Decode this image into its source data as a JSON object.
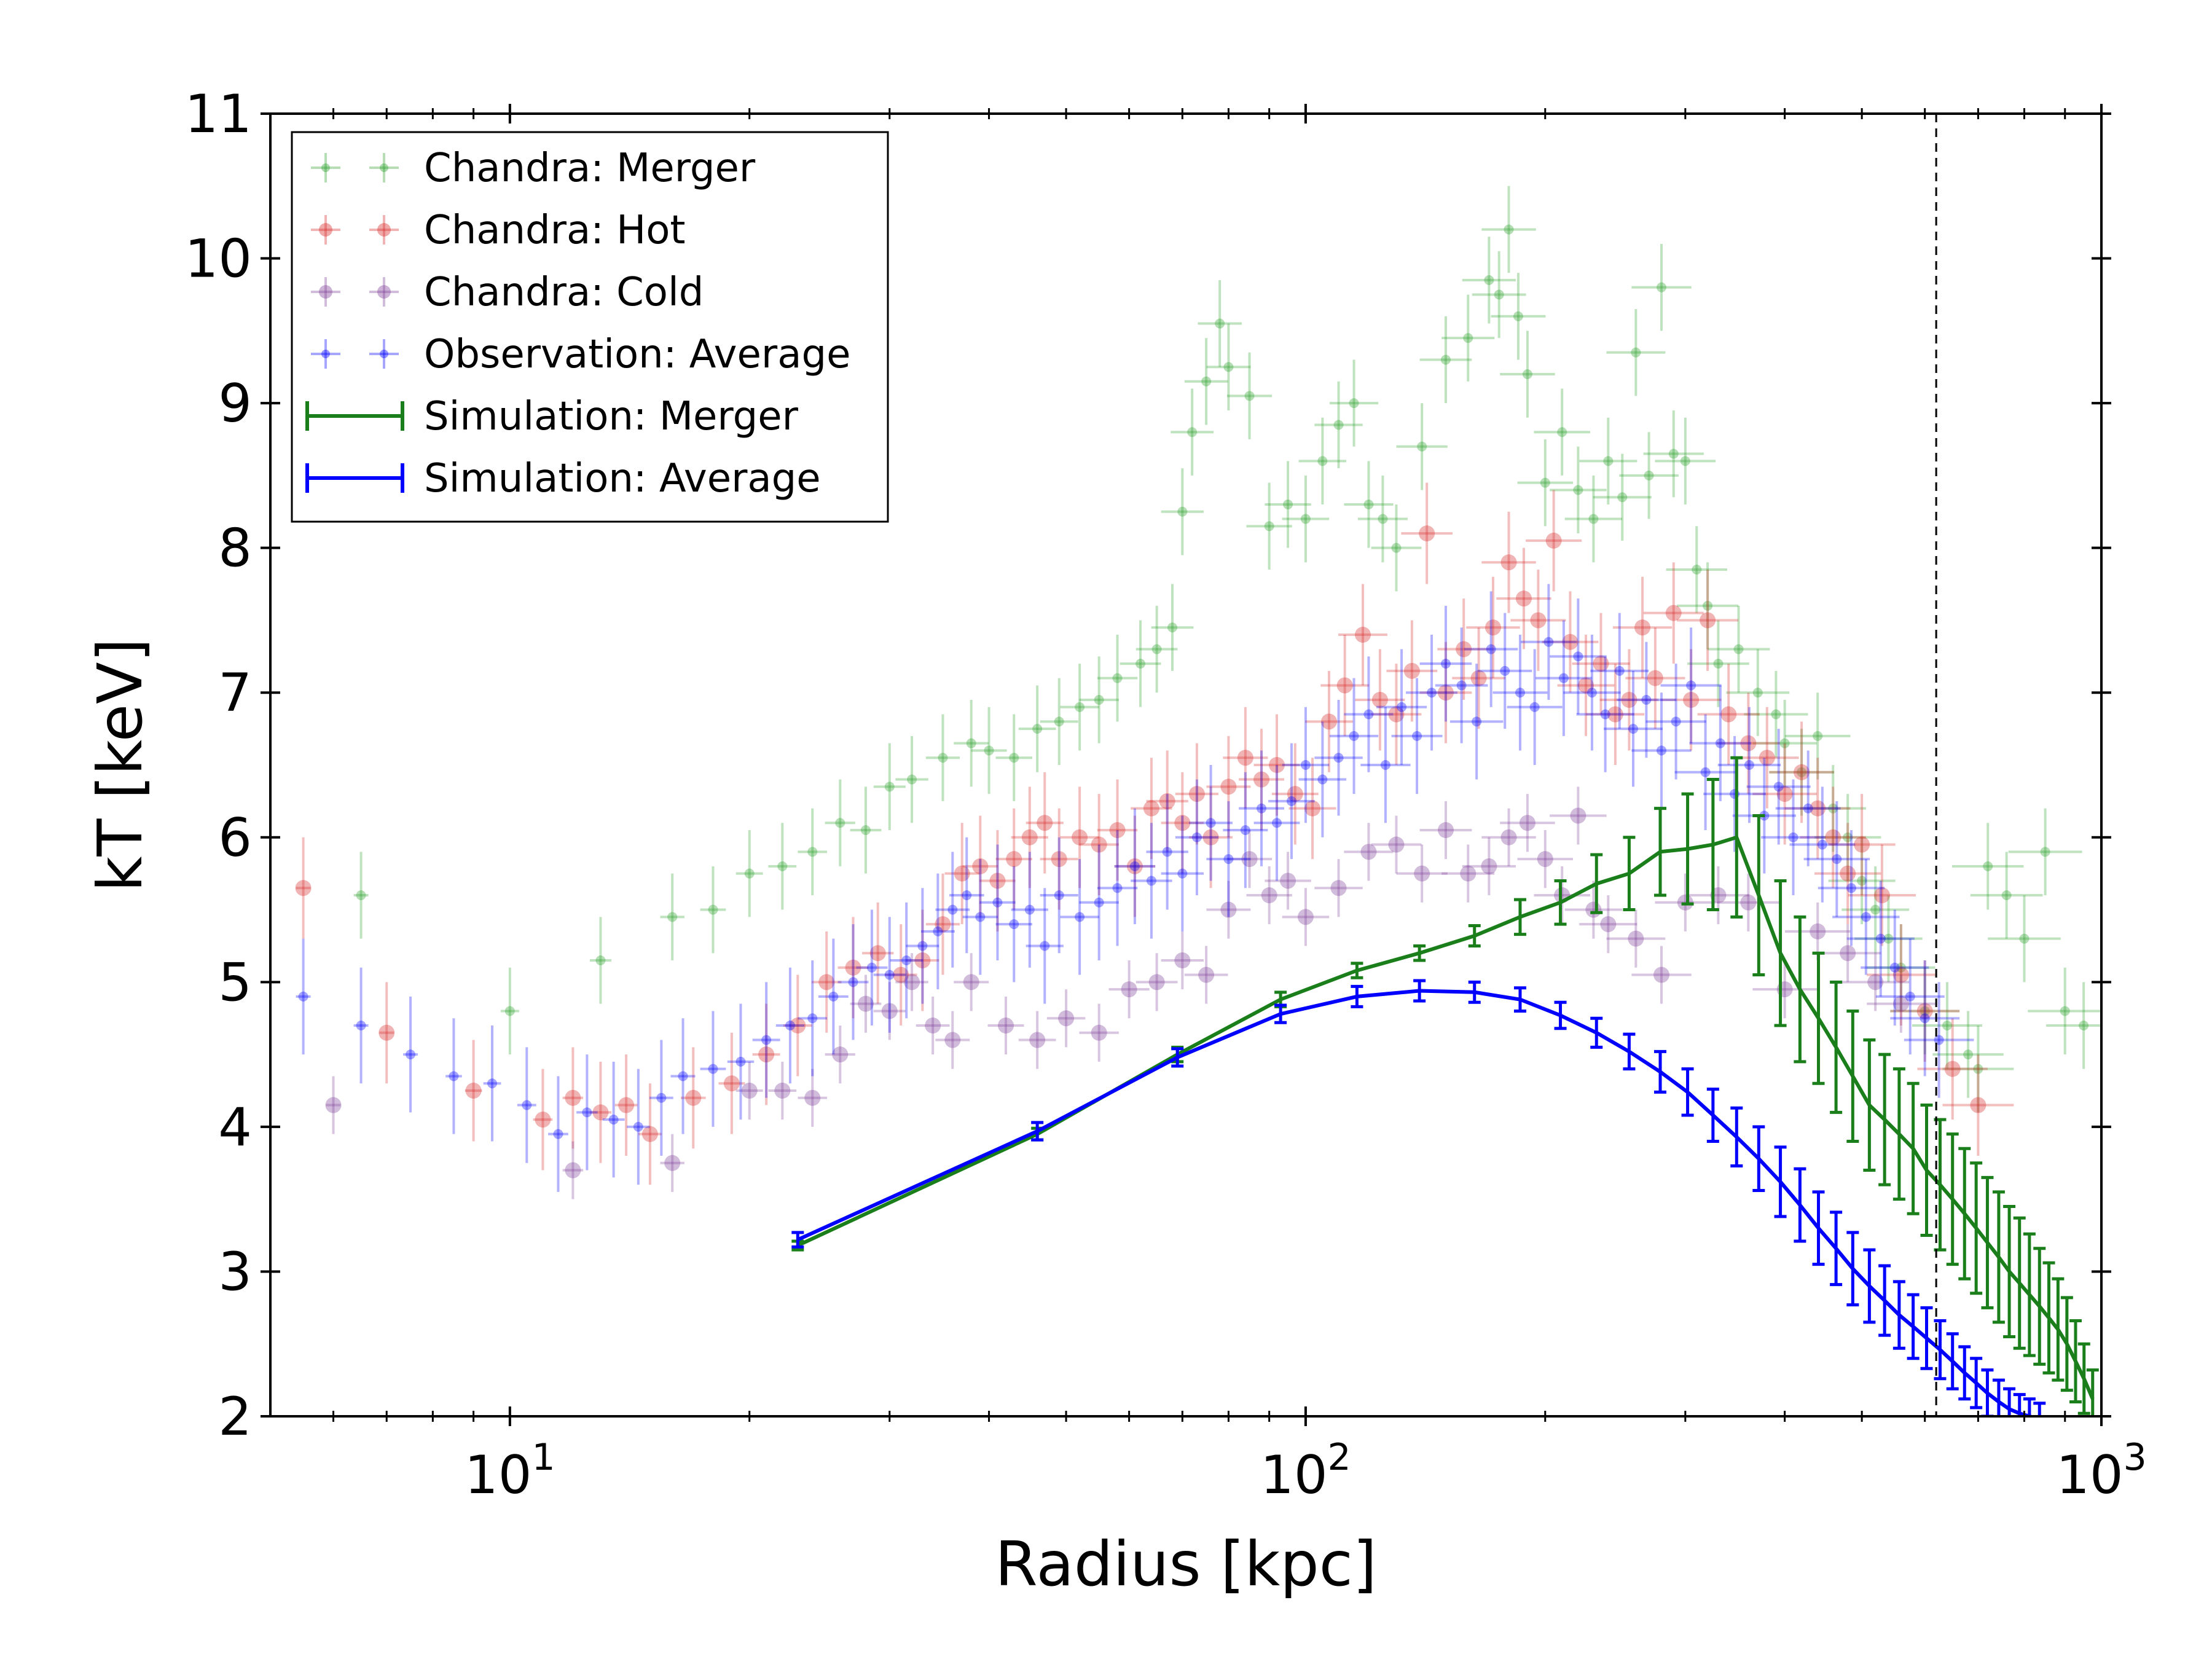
{
  "chart_data": {
    "type": "scatter",
    "xlabel": "Radius [kpc]",
    "ylabel": "kT [keV]",
    "xscale": "log",
    "xlim": [
      5,
      1000
    ],
    "ylim": [
      2,
      11
    ],
    "xticks": [
      {
        "base": "10",
        "exp": "1",
        "value": 10
      },
      {
        "base": "10",
        "exp": "2",
        "value": 100
      },
      {
        "base": "10",
        "exp": "3",
        "value": 1000
      }
    ],
    "yticks": [
      "2",
      "3",
      "4",
      "5",
      "6",
      "7",
      "8",
      "9",
      "10",
      "11"
    ],
    "vline_x": 620,
    "grid": false,
    "legend_position": "upper left",
    "series": [
      {
        "name": "Chandra: Merger",
        "color": "#2ca02c",
        "kind": "obs",
        "x": [
          6.5,
          10,
          13,
          16,
          18,
          20,
          22,
          24,
          26,
          28,
          30,
          32,
          35,
          38,
          40,
          43,
          46,
          49,
          52,
          55,
          58,
          62,
          65,
          68,
          70,
          72,
          75,
          78,
          80,
          85,
          90,
          95,
          100,
          105,
          110,
          115,
          120,
          125,
          130,
          140,
          150,
          160,
          170,
          175,
          180,
          185,
          190,
          200,
          210,
          220,
          230,
          240,
          250,
          260,
          270,
          280,
          290,
          300,
          310,
          320,
          330,
          350,
          370,
          390,
          400,
          420,
          440,
          460,
          480,
          500,
          520,
          540,
          560,
          600,
          640,
          680,
          700,
          720,
          760,
          800,
          850,
          900,
          950
        ],
        "y": [
          5.6,
          4.8,
          5.15,
          5.45,
          5.5,
          5.75,
          5.8,
          5.9,
          6.1,
          6.05,
          6.35,
          6.4,
          6.55,
          6.65,
          6.6,
          6.55,
          6.75,
          6.8,
          6.9,
          6.95,
          7.1,
          7.2,
          7.3,
          7.45,
          8.25,
          8.8,
          9.15,
          9.55,
          9.25,
          9.05,
          8.15,
          8.3,
          8.2,
          8.6,
          8.85,
          9.0,
          8.3,
          8.2,
          8.0,
          8.7,
          9.3,
          9.45,
          9.85,
          9.75,
          10.2,
          9.6,
          9.2,
          8.45,
          8.8,
          8.4,
          8.2,
          8.6,
          8.35,
          9.35,
          8.5,
          9.8,
          8.65,
          8.6,
          7.85,
          7.6,
          7.2,
          7.3,
          7.0,
          6.85,
          6.65,
          6.45,
          6.7,
          6.2,
          6.0,
          5.7,
          5.5,
          5.3,
          5.1,
          4.8,
          4.7,
          4.5,
          4.4,
          5.8,
          5.6,
          5.3,
          5.9,
          4.8,
          4.7
        ],
        "yerr": 0.3
      },
      {
        "name": "Chandra: Hot",
        "color": "#d62728",
        "kind": "obs",
        "x": [
          5.5,
          7,
          9,
          11,
          12,
          13,
          14,
          15,
          17,
          19,
          21,
          23,
          25,
          27,
          29,
          31,
          33,
          35,
          37,
          39,
          41,
          43,
          45,
          47,
          49,
          52,
          55,
          58,
          61,
          64,
          67,
          70,
          73,
          76,
          80,
          84,
          88,
          92,
          97,
          102,
          107,
          112,
          118,
          124,
          130,
          136,
          142,
          150,
          158,
          165,
          172,
          180,
          188,
          196,
          205,
          215,
          225,
          235,
          245,
          255,
          265,
          275,
          290,
          305,
          320,
          340,
          360,
          380,
          400,
          420,
          440,
          460,
          480,
          500,
          530,
          560,
          600,
          650,
          700
        ],
        "y": [
          5.65,
          4.65,
          4.25,
          4.05,
          4.2,
          4.1,
          4.15,
          3.95,
          4.2,
          4.3,
          4.5,
          4.7,
          5.0,
          5.1,
          5.2,
          5.05,
          5.15,
          5.4,
          5.75,
          5.8,
          5.7,
          5.85,
          6.0,
          6.1,
          5.85,
          6.0,
          5.95,
          6.05,
          5.8,
          6.2,
          6.25,
          6.1,
          6.3,
          6.0,
          6.35,
          6.55,
          6.4,
          6.5,
          6.3,
          6.2,
          6.8,
          7.05,
          7.4,
          6.95,
          6.85,
          7.15,
          8.1,
          7.0,
          7.3,
          7.1,
          7.45,
          7.9,
          7.65,
          7.5,
          8.05,
          7.35,
          7.05,
          7.2,
          6.85,
          6.95,
          7.45,
          7.1,
          7.55,
          6.95,
          7.5,
          6.85,
          6.65,
          6.55,
          6.3,
          6.45,
          6.2,
          6.0,
          5.75,
          5.95,
          5.6,
          5.05,
          4.8,
          4.4,
          4.15
        ],
        "yerr": 0.35
      },
      {
        "name": "Chandra: Cold",
        "color": "#7f3f98",
        "kind": "obs",
        "x": [
          6,
          12,
          16,
          20,
          22,
          24,
          26,
          28,
          30,
          32,
          34,
          36,
          38,
          42,
          46,
          50,
          55,
          60,
          65,
          70,
          75,
          80,
          85,
          90,
          95,
          100,
          110,
          120,
          130,
          140,
          150,
          160,
          170,
          180,
          190,
          200,
          210,
          220,
          230,
          240,
          260,
          280,
          300,
          330,
          360,
          400,
          440,
          480,
          520,
          560
        ],
        "y": [
          4.15,
          3.7,
          3.75,
          4.25,
          4.25,
          4.2,
          4.5,
          4.85,
          4.8,
          5.0,
          4.7,
          4.6,
          5.0,
          4.7,
          4.6,
          4.75,
          4.65,
          4.95,
          5.0,
          5.15,
          5.05,
          5.5,
          5.85,
          5.6,
          5.7,
          5.45,
          5.65,
          5.9,
          5.95,
          5.75,
          6.05,
          5.75,
          5.8,
          6.0,
          6.1,
          5.85,
          5.6,
          6.15,
          5.5,
          5.4,
          5.3,
          5.05,
          5.55,
          5.6,
          5.55,
          4.95,
          5.35,
          5.2,
          5.0,
          4.85
        ],
        "yerr": 0.2
      },
      {
        "name": "Observation: Average",
        "color": "#0000ff",
        "kind": "obs",
        "x": [
          5.5,
          6.5,
          7.5,
          8.5,
          9.5,
          10.5,
          11.5,
          12.5,
          13.5,
          14.5,
          15.5,
          16.5,
          18,
          19.5,
          21,
          22.5,
          24,
          25.5,
          27,
          28.5,
          30,
          31.5,
          33,
          34.5,
          36,
          37.5,
          39,
          41,
          43,
          45,
          47,
          49,
          52,
          55,
          58,
          61,
          64,
          67,
          70,
          73,
          76,
          80,
          84,
          88,
          92,
          96,
          100,
          105,
          110,
          115,
          120,
          126,
          132,
          138,
          144,
          150,
          157,
          164,
          171,
          178,
          186,
          194,
          202,
          211,
          220,
          229,
          238,
          248,
          258,
          268,
          280,
          292,
          305,
          318,
          332,
          346,
          361,
          377,
          393,
          410,
          428,
          446,
          465,
          485,
          506,
          528,
          550,
          575,
          600,
          625
        ],
        "y": [
          4.9,
          4.7,
          4.5,
          4.35,
          4.3,
          4.15,
          3.95,
          4.1,
          4.05,
          4.0,
          4.2,
          4.35,
          4.4,
          4.45,
          4.6,
          4.7,
          4.75,
          4.9,
          5.0,
          5.1,
          5.05,
          5.15,
          5.25,
          5.35,
          5.5,
          5.6,
          5.45,
          5.55,
          5.4,
          5.5,
          5.25,
          5.6,
          5.45,
          5.55,
          5.65,
          5.8,
          5.7,
          5.9,
          5.75,
          6.0,
          6.1,
          5.85,
          6.05,
          6.2,
          6.1,
          6.25,
          6.5,
          6.4,
          6.55,
          6.7,
          6.85,
          6.5,
          6.9,
          6.7,
          7.0,
          7.2,
          7.05,
          6.8,
          7.3,
          7.15,
          7.0,
          6.9,
          7.35,
          7.1,
          7.25,
          7.0,
          6.85,
          7.15,
          6.75,
          6.95,
          6.6,
          6.8,
          7.05,
          6.45,
          6.65,
          6.3,
          6.5,
          6.15,
          6.35,
          6.0,
          6.2,
          5.95,
          5.85,
          5.65,
          5.45,
          5.3,
          5.1,
          4.9,
          4.75,
          4.6
        ],
        "yerr": 0.4
      },
      {
        "name": "Simulation: Merger",
        "color": "#1a7f1a",
        "kind": "sim",
        "x": [
          23,
          46,
          69,
          93,
          116,
          139,
          163,
          186,
          209,
          232,
          255,
          279,
          302,
          325,
          348,
          371,
          395,
          418,
          441,
          464,
          487,
          511,
          534,
          557,
          580,
          603,
          627,
          650,
          673,
          696,
          719,
          743,
          766,
          789,
          812,
          836,
          859,
          882,
          905,
          928,
          951,
          975
        ],
        "y": [
          3.18,
          3.95,
          4.5,
          4.88,
          5.08,
          5.2,
          5.32,
          5.45,
          5.55,
          5.68,
          5.75,
          5.9,
          5.92,
          5.95,
          6.0,
          5.6,
          5.2,
          4.95,
          4.75,
          4.55,
          4.35,
          4.15,
          4.05,
          3.95,
          3.85,
          3.7,
          3.6,
          3.5,
          3.4,
          3.3,
          3.2,
          3.1,
          3.0,
          2.92,
          2.84,
          2.76,
          2.68,
          2.6,
          2.5,
          2.38,
          2.26,
          2.12
        ],
        "yerr": [
          0.03,
          0.04,
          0.05,
          0.05,
          0.05,
          0.05,
          0.07,
          0.12,
          0.15,
          0.2,
          0.25,
          0.3,
          0.38,
          0.45,
          0.55,
          0.55,
          0.5,
          0.5,
          0.45,
          0.45,
          0.45,
          0.45,
          0.45,
          0.45,
          0.45,
          0.45,
          0.45,
          0.45,
          0.45,
          0.45,
          0.45,
          0.45,
          0.45,
          0.45,
          0.42,
          0.4,
          0.38,
          0.35,
          0.32,
          0.28,
          0.24,
          0.2
        ]
      },
      {
        "name": "Simulation: Average",
        "color": "#0000ff",
        "kind": "sim",
        "x": [
          23,
          46,
          69,
          93,
          116,
          139,
          163,
          186,
          209,
          232,
          255,
          279,
          302,
          325,
          348,
          371,
          395,
          418,
          441,
          464,
          487,
          511,
          534,
          557,
          580,
          603,
          627,
          650,
          673,
          696,
          719,
          743,
          766,
          789,
          812,
          836
        ],
        "y": [
          3.22,
          3.97,
          4.48,
          4.78,
          4.9,
          4.94,
          4.93,
          4.88,
          4.77,
          4.65,
          4.52,
          4.38,
          4.24,
          4.08,
          3.93,
          3.78,
          3.62,
          3.46,
          3.3,
          3.16,
          3.02,
          2.9,
          2.8,
          2.7,
          2.62,
          2.54,
          2.46,
          2.38,
          2.3,
          2.23,
          2.16,
          2.1,
          2.05,
          2.02,
          2.0,
          1.98
        ],
        "yerr": [
          0.05,
          0.06,
          0.06,
          0.06,
          0.07,
          0.07,
          0.07,
          0.08,
          0.09,
          0.1,
          0.12,
          0.14,
          0.16,
          0.18,
          0.2,
          0.22,
          0.24,
          0.25,
          0.25,
          0.25,
          0.25,
          0.25,
          0.24,
          0.23,
          0.22,
          0.21,
          0.2,
          0.19,
          0.18,
          0.17,
          0.16,
          0.15,
          0.14,
          0.13,
          0.12,
          0.11
        ]
      }
    ]
  }
}
